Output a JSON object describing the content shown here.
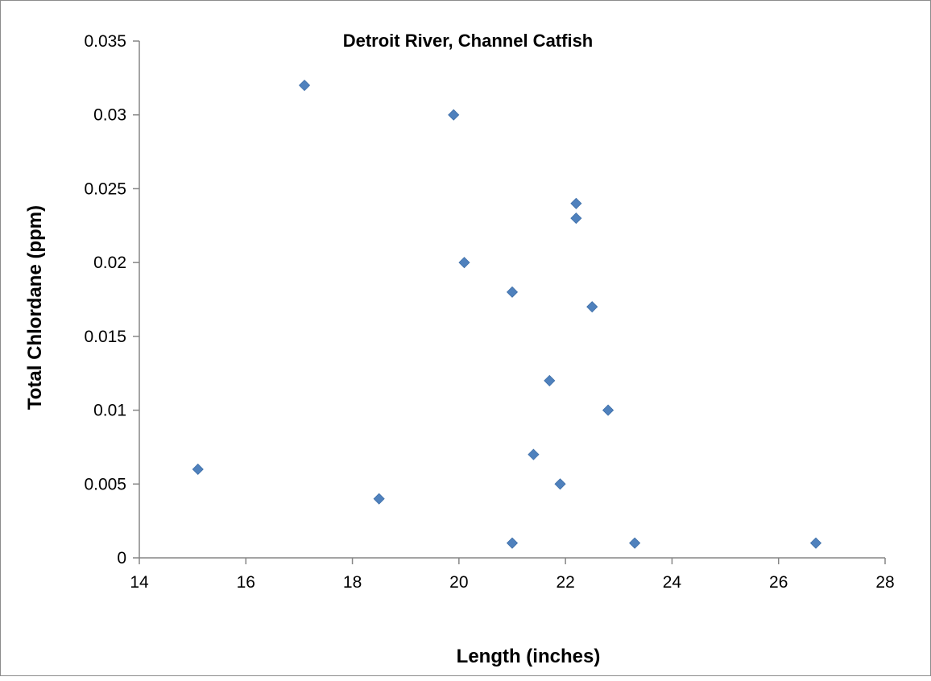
{
  "chart_data": {
    "type": "scatter",
    "title": "Detroit River, Channel Catfish",
    "xlabel": "Length (inches)",
    "ylabel": "Total Chlordane (ppm)",
    "xlim": [
      14,
      28
    ],
    "ylim": [
      0,
      0.035
    ],
    "x_ticks": [
      "14",
      "16",
      "18",
      "20",
      "22",
      "24",
      "26",
      "28"
    ],
    "y_ticks": [
      "0",
      "0.005",
      "0.01",
      "0.015",
      "0.02",
      "0.025",
      "0.03",
      "0.035"
    ],
    "x_tick_values": [
      14,
      16,
      18,
      20,
      22,
      24,
      26,
      28
    ],
    "y_tick_values": [
      0,
      0.005,
      0.01,
      0.015,
      0.02,
      0.025,
      0.03,
      0.035
    ],
    "grid": false,
    "marker": "diamond",
    "marker_color": "#4F81BD",
    "points": [
      {
        "x": 17.1,
        "y": 0.032
      },
      {
        "x": 19.9,
        "y": 0.03
      },
      {
        "x": 22.2,
        "y": 0.024
      },
      {
        "x": 22.2,
        "y": 0.023
      },
      {
        "x": 20.1,
        "y": 0.02
      },
      {
        "x": 21.0,
        "y": 0.018
      },
      {
        "x": 22.5,
        "y": 0.017
      },
      {
        "x": 21.7,
        "y": 0.012
      },
      {
        "x": 22.8,
        "y": 0.01
      },
      {
        "x": 21.4,
        "y": 0.007
      },
      {
        "x": 15.1,
        "y": 0.006
      },
      {
        "x": 21.9,
        "y": 0.005
      },
      {
        "x": 18.5,
        "y": 0.004
      },
      {
        "x": 21.0,
        "y": 0.001
      },
      {
        "x": 23.3,
        "y": 0.001
      },
      {
        "x": 26.7,
        "y": 0.001
      }
    ]
  }
}
